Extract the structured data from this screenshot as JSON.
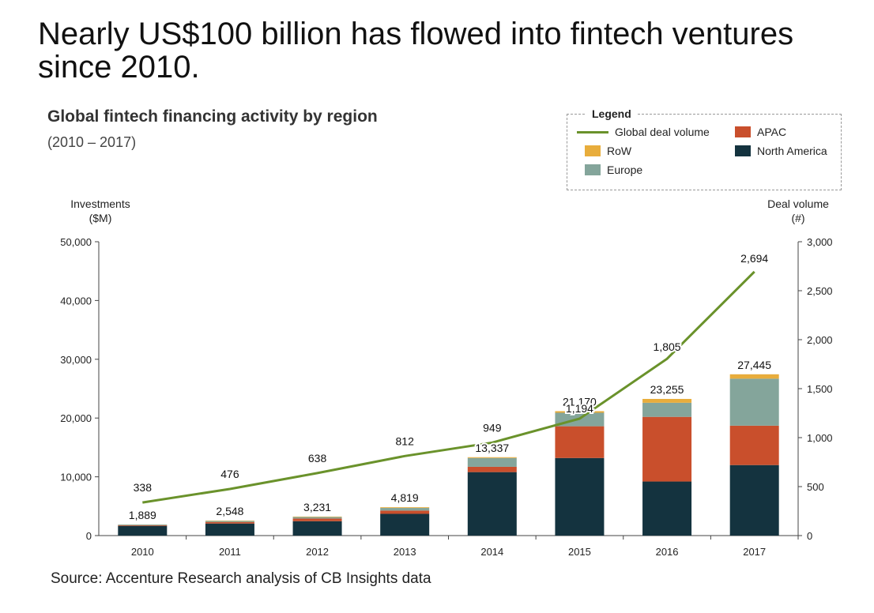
{
  "headline": "Nearly US$100 billion has flowed into fintech ventures since 2010.",
  "source": "Source: Accenture Research analysis of CB Insights data",
  "colors": {
    "north_america": "#14333f",
    "apac": "#c94f2c",
    "europe": "#84a59b",
    "row": "#e8ad3c",
    "deal_volume": "#6a922b"
  },
  "chart_data": {
    "type": "bar",
    "stacked": true,
    "title": "Global fintech financing activity by region",
    "subtitle": "(2010 – 2017)",
    "ylabel": "Investments ($M)",
    "ylabel_lines": [
      "Investments",
      "($M)"
    ],
    "y2label": "Deal volume (#)",
    "y2label_lines": [
      "Deal volume",
      "(#)"
    ],
    "categories": [
      "2010",
      "2011",
      "2012",
      "2013",
      "2014",
      "2015",
      "2016",
      "2017"
    ],
    "ylim": [
      0,
      50000
    ],
    "y_ticks": [
      0,
      10000,
      20000,
      30000,
      40000,
      50000
    ],
    "y_tick_labels": [
      "0",
      "10,000",
      "20,000",
      "30,000",
      "40,000",
      "50,000"
    ],
    "y2lim": [
      0,
      3000
    ],
    "y2_ticks": [
      0,
      500,
      1000,
      1500,
      2000,
      2500,
      3000
    ],
    "y2_tick_labels": [
      "0",
      "500",
      "1,000",
      "1,500",
      "2,000",
      "2,500",
      "3,000"
    ],
    "legend_title": "Legend",
    "legend_position": "top-right",
    "series": [
      {
        "name": "North America",
        "key": "north_america",
        "values": [
          1650,
          2050,
          2450,
          3700,
          10800,
          13200,
          9200,
          12000
        ]
      },
      {
        "name": "APAC",
        "key": "apac",
        "values": [
          100,
          250,
          450,
          550,
          900,
          5400,
          11000,
          6700
        ]
      },
      {
        "name": "Europe",
        "key": "europe",
        "values": [
          120,
          180,
          250,
          450,
          1500,
          2300,
          2400,
          8000
        ]
      },
      {
        "name": "RoW",
        "key": "row",
        "values": [
          19,
          68,
          81,
          119,
          137,
          270,
          655,
          745
        ]
      }
    ],
    "totals": [
      1889,
      2548,
      3231,
      4819,
      13337,
      21170,
      23255,
      27445
    ],
    "total_labels": [
      "1,889",
      "2,548",
      "3,231",
      "4,819",
      "13,337",
      "21,170",
      "23,255",
      "27,445"
    ],
    "line_series": {
      "name": "Global deal volume",
      "axis": "right",
      "values": [
        338,
        476,
        638,
        812,
        949,
        1194,
        1805,
        2694
      ],
      "labels": [
        "338",
        "476",
        "638",
        "812",
        "949",
        "1,194",
        "1,805",
        "2,694"
      ]
    }
  }
}
